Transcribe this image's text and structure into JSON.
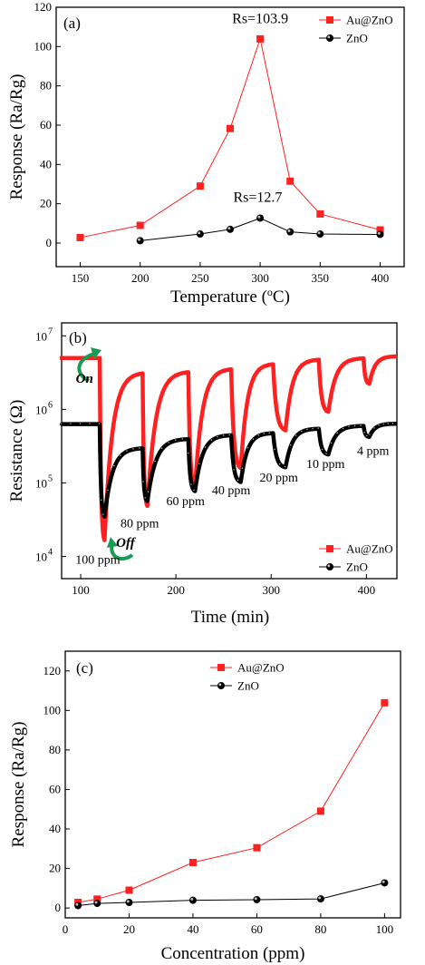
{
  "colors": {
    "au": "#ff2020",
    "zno": "#000000",
    "arrow": "#1a9a55"
  },
  "chart_data": [
    {
      "type": "line",
      "panel_label": "(a)",
      "xlabel": "Temperature (",
      "xlabel_sup": "o",
      "xlabel_tail": "C)",
      "ylabel": "Response (Ra/Rg)",
      "xlim": [
        130,
        420
      ],
      "ylim": [
        -12,
        120
      ],
      "xticks": [
        150,
        200,
        250,
        300,
        350,
        400
      ],
      "yticks": [
        0,
        20,
        40,
        60,
        80,
        100,
        120
      ],
      "legend_position": "top-right",
      "series": [
        {
          "name": "Au@ZnO",
          "marker": "square",
          "x": [
            150,
            200,
            250,
            275,
            300,
            325,
            350,
            400
          ],
          "y": [
            2.8,
            9.0,
            29.0,
            58.3,
            103.9,
            31.5,
            14.8,
            6.7
          ]
        },
        {
          "name": "ZnO",
          "marker": "circle",
          "x": [
            200,
            250,
            275,
            300,
            325,
            350,
            400
          ],
          "y": [
            1.2,
            4.6,
            7.0,
            12.7,
            5.7,
            4.6,
            4.4
          ]
        }
      ],
      "annotations": [
        {
          "text": "Rs=103.9",
          "x": 300,
          "y": 112
        },
        {
          "text": "Rs=12.7",
          "x": 298,
          "y": 21
        }
      ]
    },
    {
      "type": "line",
      "panel_label": "(b)",
      "xlabel": "Time (min)",
      "ylabel": "Resistance (Ω)",
      "yscale": "log",
      "xlim": [
        80,
        432
      ],
      "ylim": [
        5000,
        15000000
      ],
      "xticks": [
        100,
        200,
        300,
        400
      ],
      "ytick_labels": [
        {
          "base": "10",
          "exp": "4",
          "value": 10000
        },
        {
          "base": "10",
          "exp": "5",
          "value": 100000
        },
        {
          "base": "10",
          "exp": "6",
          "value": 1000000
        },
        {
          "base": "10",
          "exp": "7",
          "value": 10000000
        }
      ],
      "legend_position": "bottom-right",
      "series": [
        {
          "name": "Au@ZnO",
          "marker": "square",
          "cycles": [
            {
              "on": 120,
              "off": 125,
              "off_end": 140,
              "base_before": 5000000,
              "low": 15000,
              "high": 3200000
            },
            {
              "on": 165,
              "off": 170,
              "off_end": 185,
              "base_before": 3200000,
              "low": 45000,
              "high": 3300000
            },
            {
              "on": 213,
              "off": 220,
              "off_end": 235,
              "base_before": 3300000,
              "low": 80000,
              "high": 3600000
            },
            {
              "on": 258,
              "off": 268,
              "off_end": 283,
              "base_before": 3600000,
              "low": 150000,
              "high": 4200000
            },
            {
              "on": 302,
              "off": 315,
              "off_end": 330,
              "base_before": 4200000,
              "low": 500000,
              "high": 4800000
            },
            {
              "on": 350,
              "off": 360,
              "off_end": 375,
              "base_before": 4800000,
              "low": 900000,
              "high": 5000000
            },
            {
              "on": 397,
              "off": 403,
              "off_end": 418,
              "base_before": 5000000,
              "low": 2200000,
              "high": 5300000
            }
          ]
        },
        {
          "name": "ZnO",
          "marker": "circle",
          "cycles": [
            {
              "on": 120,
              "off": 125,
              "off_end": 140,
              "base_before": 630000,
              "low": 33000,
              "high": 300000
            },
            {
              "on": 165,
              "off": 170,
              "off_end": 185,
              "base_before": 300000,
              "low": 55000,
              "high": 400000
            },
            {
              "on": 213,
              "off": 220,
              "off_end": 235,
              "base_before": 400000,
              "low": 75000,
              "high": 450000
            },
            {
              "on": 258,
              "off": 268,
              "off_end": 283,
              "base_before": 450000,
              "low": 100000,
              "high": 480000
            },
            {
              "on": 302,
              "off": 315,
              "off_end": 330,
              "base_before": 480000,
              "low": 160000,
              "high": 550000
            },
            {
              "on": 350,
              "off": 360,
              "off_end": 375,
              "base_before": 550000,
              "low": 240000,
              "high": 600000
            },
            {
              "on": 397,
              "off": 403,
              "off_end": 418,
              "base_before": 600000,
              "low": 420000,
              "high": 640000
            }
          ]
        }
      ],
      "annotations": [
        {
          "text": "100 ppm",
          "x": 118,
          "y": 8000
        },
        {
          "text": "80 ppm",
          "x": 162,
          "y": 25000
        },
        {
          "text": "60 ppm",
          "x": 210,
          "y": 50000
        },
        {
          "text": "40 ppm",
          "x": 258,
          "y": 70000
        },
        {
          "text": "20 ppm",
          "x": 308,
          "y": 105000
        },
        {
          "text": "10 ppm",
          "x": 357,
          "y": 160000
        },
        {
          "text": "4 ppm",
          "x": 407,
          "y": 240000
        },
        {
          "text": "On",
          "x": 104,
          "y": 2300000,
          "style": "onoff"
        },
        {
          "text": "Off",
          "x": 147,
          "y": 13500,
          "style": "onoff"
        }
      ]
    },
    {
      "type": "line",
      "panel_label": "(c)",
      "xlabel": "Concentration (ppm)",
      "ylabel": "Response (Ra/Rg)",
      "xlim": [
        0,
        105
      ],
      "ylim": [
        -5,
        130
      ],
      "xticks": [
        0,
        20,
        40,
        60,
        80,
        100
      ],
      "yticks": [
        0,
        20,
        40,
        60,
        80,
        100,
        120
      ],
      "legend_position": "top-center",
      "series": [
        {
          "name": "Au@ZnO",
          "marker": "square",
          "x": [
            4,
            10,
            20,
            40,
            60,
            80,
            100
          ],
          "y": [
            2.8,
            4.5,
            9.0,
            23.0,
            30.5,
            49.0,
            103.9
          ]
        },
        {
          "name": "ZnO",
          "marker": "circle",
          "x": [
            4,
            10,
            20,
            40,
            60,
            80,
            100
          ],
          "y": [
            1.2,
            2.3,
            2.8,
            3.9,
            4.2,
            4.6,
            12.7
          ]
        }
      ]
    }
  ]
}
